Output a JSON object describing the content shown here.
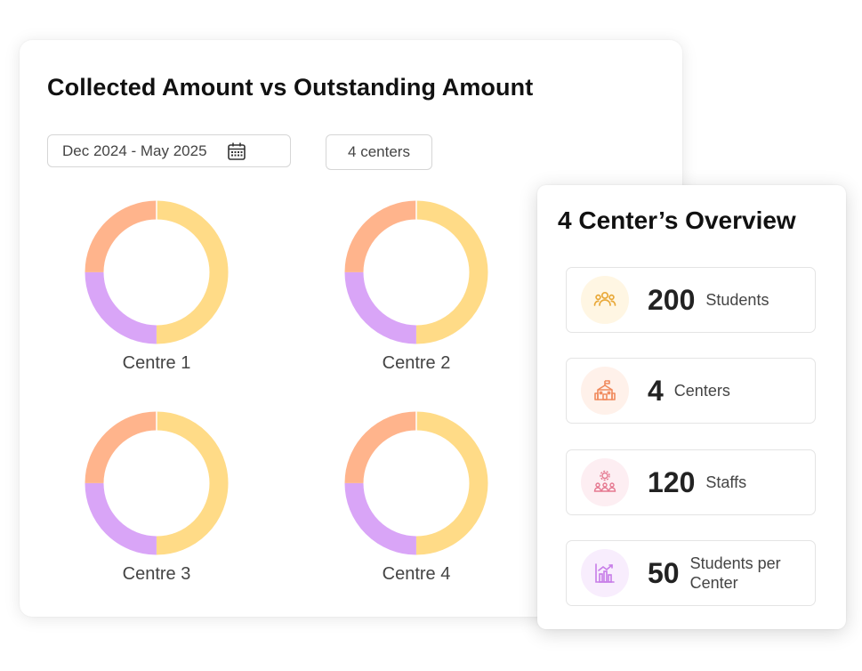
{
  "main": {
    "title": "Collected Amount vs Outstanding Amount",
    "date_range": "Dec 2024 - May 2025",
    "center_filter": "4 centers"
  },
  "colors": {
    "collected": "#FFDB87",
    "segment_purple": "#D9A5F7",
    "segment_orange": "#FFB48C"
  },
  "chart_data": [
    {
      "type": "pie",
      "title": "Centre 1",
      "slices": [
        {
          "label": "Collected",
          "value": 50,
          "color": "#FFDB87"
        },
        {
          "label": "Purple segment",
          "value": 25,
          "color": "#D9A5F7"
        },
        {
          "label": "Orange segment",
          "value": 25,
          "color": "#FFB48C"
        }
      ]
    },
    {
      "type": "pie",
      "title": "Centre 2",
      "slices": [
        {
          "label": "Collected",
          "value": 50,
          "color": "#FFDB87"
        },
        {
          "label": "Purple segment",
          "value": 25,
          "color": "#D9A5F7"
        },
        {
          "label": "Orange segment",
          "value": 25,
          "color": "#FFB48C"
        }
      ]
    },
    {
      "type": "pie",
      "title": "Centre 3",
      "slices": [
        {
          "label": "Collected",
          "value": 50,
          "color": "#FFDB87"
        },
        {
          "label": "Purple segment",
          "value": 25,
          "color": "#D9A5F7"
        },
        {
          "label": "Orange segment",
          "value": 25,
          "color": "#FFB48C"
        }
      ]
    },
    {
      "type": "pie",
      "title": "Centre 4",
      "slices": [
        {
          "label": "Collected",
          "value": 50,
          "color": "#FFDB87"
        },
        {
          "label": "Purple segment",
          "value": 25,
          "color": "#D9A5F7"
        },
        {
          "label": "Orange segment",
          "value": 25,
          "color": "#FFB48C"
        }
      ]
    }
  ],
  "overview": {
    "title": "4 Center’s Overview",
    "stats": [
      {
        "value": "200",
        "label": "Students",
        "icon": "students-icon",
        "icon_color": "#E9A93A",
        "icon_bg": "#FFF6E3"
      },
      {
        "value": "4",
        "label": "Centers",
        "icon": "school-building-icon",
        "icon_color": "#F08A5D",
        "icon_bg": "#FFF1EA"
      },
      {
        "value": "120",
        "label": "Staffs",
        "icon": "staff-gear-icon",
        "icon_color": "#E57890",
        "icon_bg": "#FDEEF2"
      },
      {
        "value": "50",
        "label": "Students per Center",
        "icon": "bar-chart-icon",
        "icon_color": "#C77CE8",
        "icon_bg": "#F8EDFD"
      }
    ]
  }
}
